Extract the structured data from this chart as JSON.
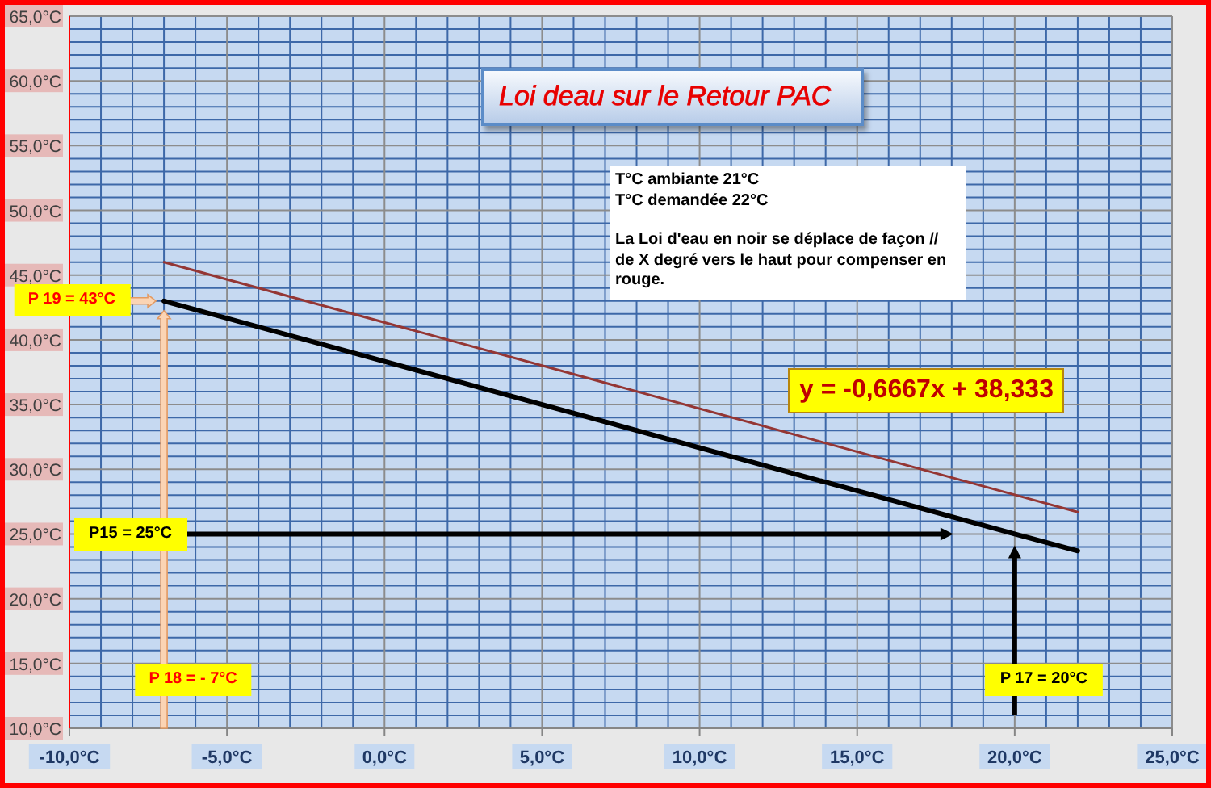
{
  "chart_data": {
    "type": "line",
    "title": "Loi deau sur le Retour PAC",
    "series": [
      {
        "color": "#000000",
        "x": [
          -7,
          20,
          22
        ],
        "values": [
          43,
          25,
          23.7
        ]
      },
      {
        "color": "#943634",
        "x": [
          -7,
          22
        ],
        "values": [
          46,
          26.7
        ]
      }
    ],
    "xlim": [
      -10,
      25
    ],
    "xticks": [
      {
        "value": -10,
        "label": "-10,0°C"
      },
      {
        "value": -9,
        "label": null
      },
      {
        "value": -8,
        "label": null
      },
      {
        "value": -7,
        "label": null
      },
      {
        "value": -6,
        "label": null
      },
      {
        "value": -5,
        "label": "-5,0°C"
      },
      {
        "value": -4,
        "label": null
      },
      {
        "value": -3,
        "label": null
      },
      {
        "value": -2,
        "label": null
      },
      {
        "value": -1,
        "label": null
      },
      {
        "value": 0,
        "label": "0,0°C"
      },
      {
        "value": 1,
        "label": null
      },
      {
        "value": 2,
        "label": null
      },
      {
        "value": 3,
        "label": null
      },
      {
        "value": 4,
        "label": null
      },
      {
        "value": 5,
        "label": "5,0°C"
      },
      {
        "value": 6,
        "label": null
      },
      {
        "value": 7,
        "label": null
      },
      {
        "value": 8,
        "label": null
      },
      {
        "value": 9,
        "label": null
      },
      {
        "value": 10,
        "label": "10,0°C"
      },
      {
        "value": 11,
        "label": null
      },
      {
        "value": 12,
        "label": null
      },
      {
        "value": 13,
        "label": null
      },
      {
        "value": 14,
        "label": null
      },
      {
        "value": 15,
        "label": "15,0°C"
      },
      {
        "value": 16,
        "label": null
      },
      {
        "value": 17,
        "label": null
      },
      {
        "value": 18,
        "label": null
      },
      {
        "value": 19,
        "label": null
      },
      {
        "value": 20,
        "label": "20,0°C"
      },
      {
        "value": 21,
        "label": null
      },
      {
        "value": 22,
        "label": null
      },
      {
        "value": 23,
        "label": null
      },
      {
        "value": 24,
        "label": null
      },
      {
        "value": 25,
        "label": "25,0°C"
      }
    ],
    "ylim": [
      10,
      65
    ],
    "yticks": [
      {
        "value": 10,
        "label": "10,0°C"
      },
      {
        "value": 11,
        "label": null
      },
      {
        "value": 12,
        "label": null
      },
      {
        "value": 13,
        "label": null
      },
      {
        "value": 14,
        "label": null
      },
      {
        "value": 15,
        "label": "15,0°C"
      },
      {
        "value": 16,
        "label": null
      },
      {
        "value": 17,
        "label": null
      },
      {
        "value": 18,
        "label": null
      },
      {
        "value": 19,
        "label": null
      },
      {
        "value": 20,
        "label": "20,0°C"
      },
      {
        "value": 21,
        "label": null
      },
      {
        "value": 22,
        "label": null
      },
      {
        "value": 23,
        "label": null
      },
      {
        "value": 24,
        "label": null
      },
      {
        "value": 25,
        "label": "25,0°C"
      },
      {
        "value": 26,
        "label": null
      },
      {
        "value": 27,
        "label": null
      },
      {
        "value": 28,
        "label": null
      },
      {
        "value": 29,
        "label": null
      },
      {
        "value": 30,
        "label": "30,0°C"
      },
      {
        "value": 31,
        "label": null
      },
      {
        "value": 32,
        "label": null
      },
      {
        "value": 33,
        "label": null
      },
      {
        "value": 34,
        "label": null
      },
      {
        "value": 35,
        "label": "35,0°C"
      },
      {
        "value": 36,
        "label": null
      },
      {
        "value": 37,
        "label": null
      },
      {
        "value": 38,
        "label": null
      },
      {
        "value": 39,
        "label": null
      },
      {
        "value": 40,
        "label": "40,0°C"
      },
      {
        "value": 41,
        "label": null
      },
      {
        "value": 42,
        "label": null
      },
      {
        "value": 43,
        "label": null
      },
      {
        "value": 44,
        "label": null
      },
      {
        "value": 45,
        "label": "45,0°C"
      },
      {
        "value": 46,
        "label": null
      },
      {
        "value": 47,
        "label": null
      },
      {
        "value": 48,
        "label": null
      },
      {
        "value": 49,
        "label": null
      },
      {
        "value": 50,
        "label": "50,0°C"
      },
      {
        "value": 51,
        "label": null
      },
      {
        "value": 52,
        "label": null
      },
      {
        "value": 53,
        "label": null
      },
      {
        "value": 54,
        "label": null
      },
      {
        "value": 55,
        "label": "55,0°C"
      },
      {
        "value": 56,
        "label": null
      },
      {
        "value": 57,
        "label": null
      },
      {
        "value": 58,
        "label": null
      },
      {
        "value": 59,
        "label": null
      },
      {
        "value": 60,
        "label": "60,0°C"
      },
      {
        "value": 61,
        "label": null
      },
      {
        "value": 62,
        "label": null
      },
      {
        "value": 63,
        "label": null
      },
      {
        "value": 64,
        "label": null
      },
      {
        "value": 65,
        "label": "65,0°C"
      }
    ],
    "grid": true,
    "annotations": [
      "T°C ambiante 21°C",
      "T°C demandée 22°C",
      "La Loi d'eau en noir se déplace de façon // de X degré vers le haut pour compenser en rouge.",
      "y = -0,6667x + 38,333",
      "P 19 = 43°C",
      "P15 = 25°C",
      "P 18 = - 7°C",
      "P 17 = 20°C"
    ]
  }
}
